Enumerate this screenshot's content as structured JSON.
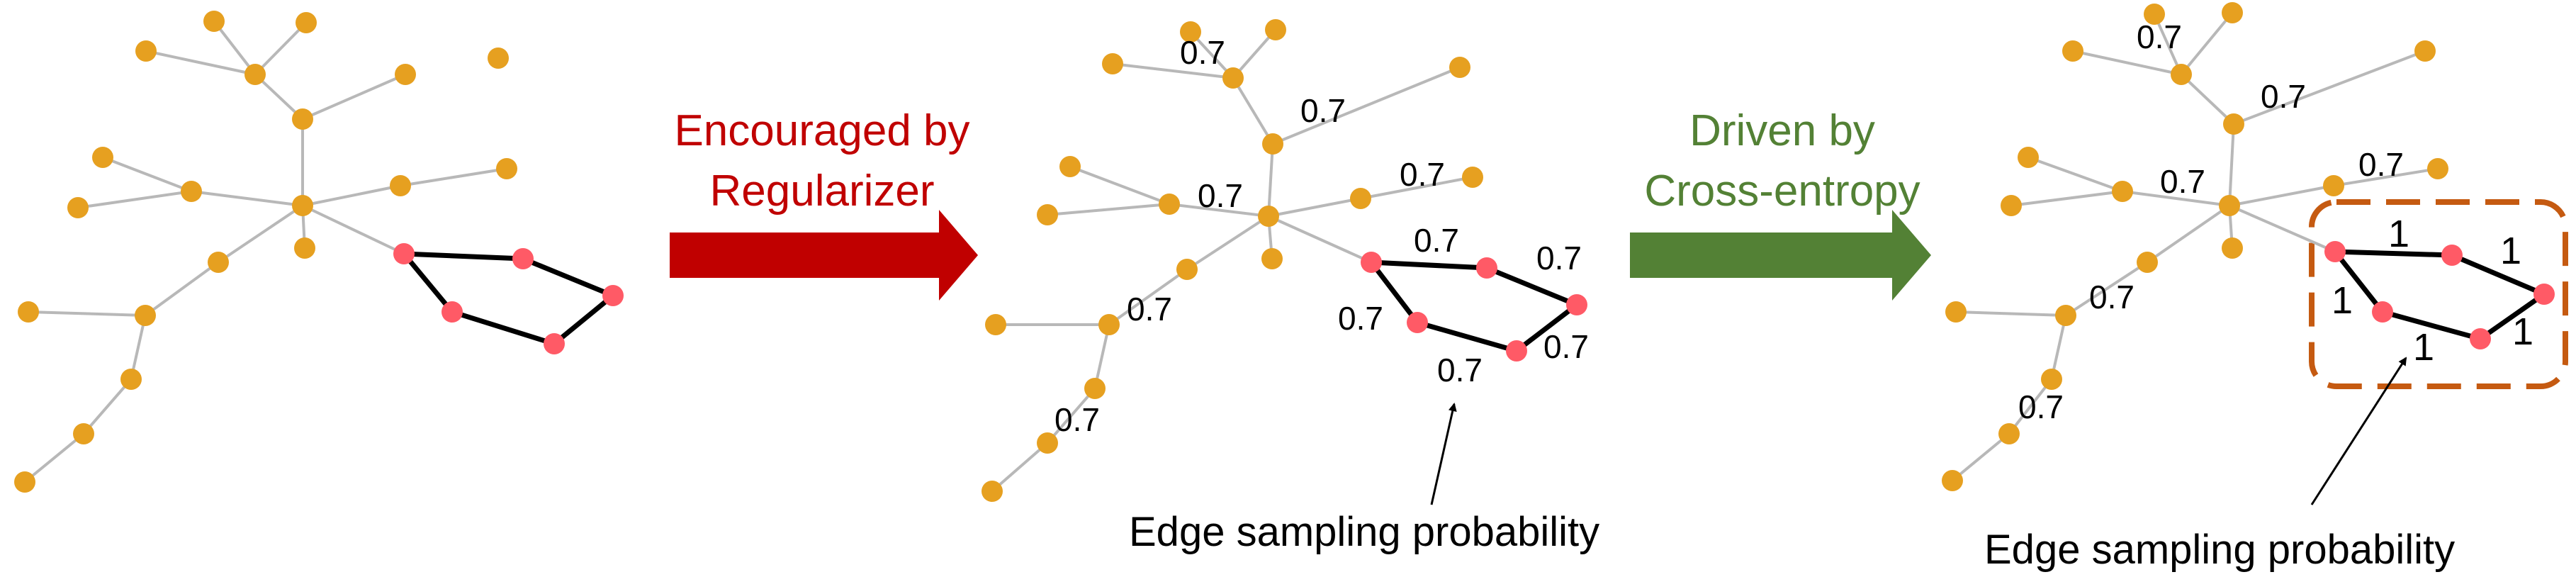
{
  "colors": {
    "background": "#ffffff",
    "orange_node": "#e6a020",
    "red_node": "#ff5a66",
    "gray_edge": "#b8b8b8",
    "black_edge": "#000000",
    "red_arrow": "#c00000",
    "green_arrow": "#538135",
    "dashed_box": "#c55a11"
  },
  "arrows": {
    "first": {
      "line1": "Encouraged by",
      "line2": "Regularizer"
    },
    "second": {
      "line1": "Driven by",
      "line2": "Cross-entropy"
    }
  },
  "panel2": {
    "edge_probability": "0.7",
    "callout": "Edge sampling probability"
  },
  "panel3": {
    "tree_probability": "0.7",
    "cycle_probability": "1",
    "callout": "Edge sampling probability"
  }
}
